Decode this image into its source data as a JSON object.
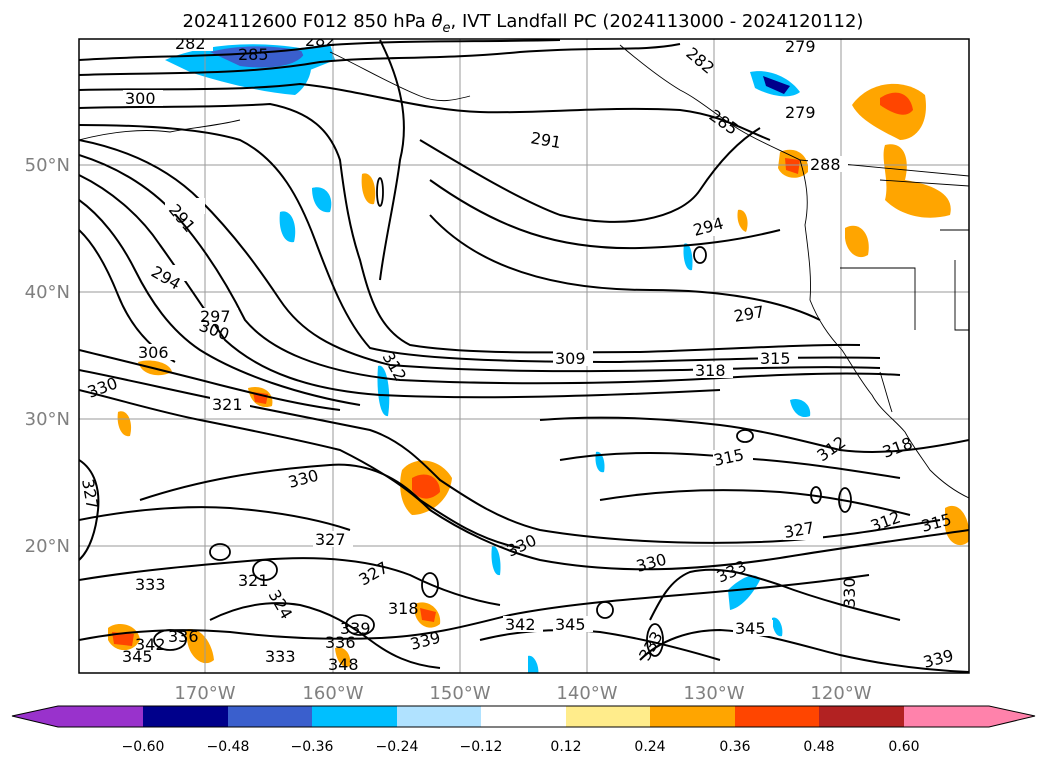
{
  "title_plain": "2024112600 F012 850 hPa ",
  "title_theta": "θ",
  "title_sub": "e",
  "title_rest": ", IVT Landfall PC (2024113000 - 2024120112)",
  "map": {
    "lon_range": [
      -180,
      -110
    ],
    "lat_range": [
      10,
      60
    ],
    "lat_labels": [
      "20°N",
      "30°N",
      "40°N",
      "50°N"
    ],
    "lon_labels": [
      "170°W",
      "160°W",
      "150°W",
      "140°W",
      "130°W",
      "120°W"
    ],
    "gridlines": true,
    "contour_color": "#000000"
  },
  "colorbar": {
    "tick_labels": [
      "−0.60",
      "−0.48",
      "−0.36",
      "−0.24",
      "−0.12",
      "0.12",
      "0.24",
      "0.36",
      "0.48",
      "0.60"
    ],
    "colors": [
      "#9932CC",
      "#00008B",
      "#3A5FCD",
      "#00BFFF",
      "#B0E2FF",
      "#FFFFFF",
      "#FFEC8B",
      "#FFA500",
      "#FF4500",
      "#B22222",
      "#FF82AB"
    ],
    "extend": "both"
  },
  "contour_labels": [
    {
      "text": "282"
    },
    {
      "text": "285"
    },
    {
      "text": "282"
    },
    {
      "text": "279"
    },
    {
      "text": "300"
    },
    {
      "text": "282"
    },
    {
      "text": "279"
    },
    {
      "text": "291"
    },
    {
      "text": "288"
    },
    {
      "text": "285"
    },
    {
      "text": "291"
    },
    {
      "text": "294"
    },
    {
      "text": "294"
    },
    {
      "text": "297"
    },
    {
      "text": "300"
    },
    {
      "text": "297"
    },
    {
      "text": "306"
    },
    {
      "text": "309"
    },
    {
      "text": "312"
    },
    {
      "text": "318"
    },
    {
      "text": "315"
    },
    {
      "text": "330"
    },
    {
      "text": "321"
    },
    {
      "text": "315"
    },
    {
      "text": "330"
    },
    {
      "text": "312"
    },
    {
      "text": "318"
    },
    {
      "text": "327"
    },
    {
      "text": "327"
    },
    {
      "text": "330"
    },
    {
      "text": "327"
    },
    {
      "text": "312"
    },
    {
      "text": "315"
    },
    {
      "text": "333"
    },
    {
      "text": "330"
    },
    {
      "text": "333"
    },
    {
      "text": "321"
    },
    {
      "text": "324"
    },
    {
      "text": "327"
    },
    {
      "text": "318"
    },
    {
      "text": "330"
    },
    {
      "text": "342"
    },
    {
      "text": "345"
    },
    {
      "text": "345"
    },
    {
      "text": "339"
    },
    {
      "text": "336"
    },
    {
      "text": "339"
    },
    {
      "text": "342"
    },
    {
      "text": "345"
    },
    {
      "text": "336"
    },
    {
      "text": "333"
    },
    {
      "text": "339"
    },
    {
      "text": "348"
    },
    {
      "text": "333"
    }
  ]
}
